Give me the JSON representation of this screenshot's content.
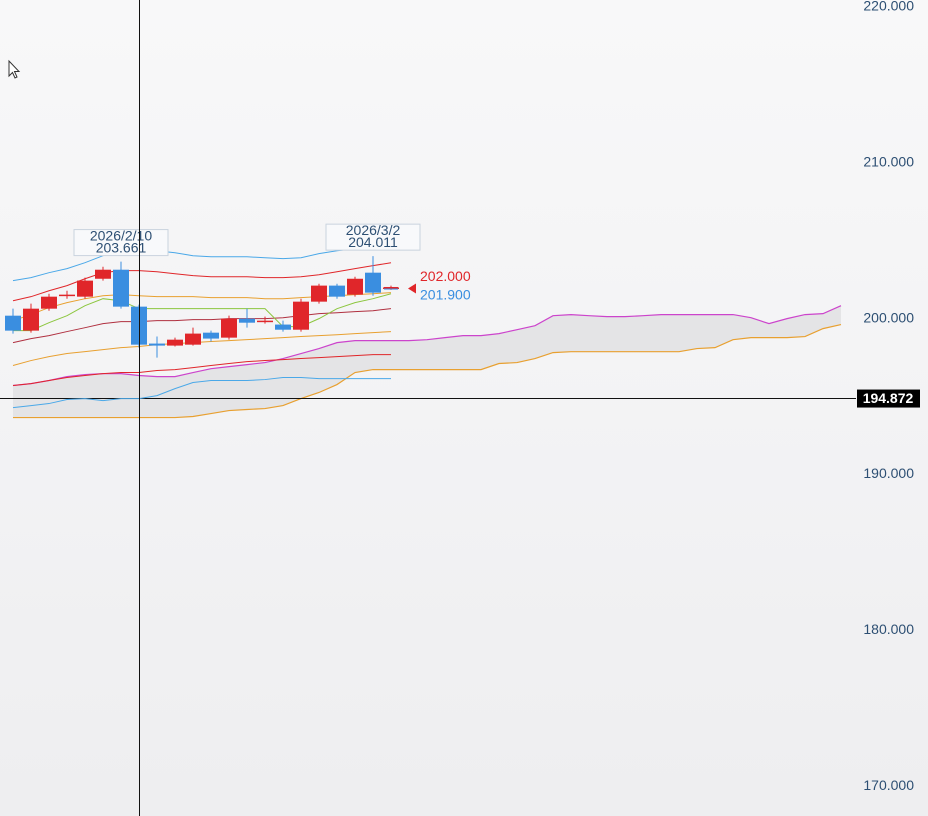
{
  "chart_data": {
    "type": "candlestick",
    "categories": [
      null,
      null,
      null,
      null,
      null,
      null,
      "2026/2/10",
      null,
      null,
      null,
      null,
      null,
      null,
      null,
      null,
      null,
      null,
      null,
      null,
      null,
      "2026/3/2",
      null
    ],
    "open": [
      200.19,
      199.23,
      200.64,
      201.47,
      201.41,
      202.56,
      203.14,
      200.77,
      198.4,
      198.27,
      198.33,
      199.1,
      198.78,
      200.0,
      199.81,
      199.62,
      199.29,
      201.09,
      202.12,
      201.54,
      202.95,
      201.95
    ],
    "high": [
      200.64,
      200.96,
      201.6,
      201.79,
      202.63,
      203.33,
      203.661,
      200.9,
      198.85,
      198.78,
      199.42,
      199.23,
      200.19,
      200.64,
      200.13,
      199.87,
      201.28,
      202.24,
      202.24,
      202.69,
      204.011,
      202.12
    ],
    "low": [
      199.04,
      199.1,
      200.51,
      201.28,
      201.28,
      202.44,
      200.64,
      198.14,
      197.5,
      198.21,
      198.27,
      198.53,
      198.65,
      199.42,
      199.68,
      199.17,
      199.17,
      200.96,
      201.28,
      201.41,
      201.47,
      201.85
    ],
    "close": [
      199.23,
      200.64,
      201.41,
      201.54,
      202.44,
      203.14,
      200.77,
      198.33,
      198.27,
      198.65,
      199.04,
      198.72,
      200.0,
      199.74,
      199.87,
      199.29,
      201.09,
      202.12,
      201.41,
      202.56,
      201.67,
      202.0
    ],
    "up_color": "#e0262a",
    "down_color": "#3a8ee0",
    "ylim": [
      168.08,
      220.45
    ],
    "yticks": [
      {
        "value": 220,
        "label": "220.000"
      },
      {
        "value": 210,
        "label": "210.000"
      },
      {
        "value": 200,
        "label": "200.000"
      },
      {
        "value": 190,
        "label": "190.000"
      },
      {
        "value": 180,
        "label": "180.000"
      },
      {
        "value": 170,
        "label": "170.000"
      }
    ],
    "lines": [
      {
        "color": "#4aa8e8",
        "values": [
          202.44,
          202.63,
          202.95,
          203.21,
          203.59,
          204.04,
          204.36,
          204.49,
          204.36,
          204.23,
          204.04,
          203.97,
          203.97,
          203.97,
          203.91,
          203.85,
          203.91,
          204.17,
          204.36,
          204.49,
          204.62,
          204.74
        ]
      },
      {
        "color": "#e0262a",
        "values": [
          201.15,
          201.41,
          201.79,
          202.12,
          202.56,
          202.95,
          203.08,
          203.08,
          203.01,
          202.88,
          202.76,
          202.69,
          202.69,
          202.69,
          202.63,
          202.63,
          202.69,
          202.82,
          203.01,
          203.21,
          203.4,
          203.59
        ]
      },
      {
        "color": "#e8a030",
        "values": [
          199.87,
          200.26,
          200.71,
          201.03,
          201.28,
          201.47,
          201.54,
          201.47,
          201.41,
          201.41,
          201.41,
          201.35,
          201.35,
          201.35,
          201.28,
          201.28,
          201.35,
          201.41,
          201.47,
          201.54,
          201.6,
          201.67
        ]
      },
      {
        "color": "#b03040",
        "values": [
          198.46,
          198.72,
          198.91,
          199.17,
          199.42,
          199.68,
          199.81,
          199.81,
          199.87,
          199.87,
          199.94,
          199.94,
          200.0,
          200.0,
          200.0,
          200.06,
          200.19,
          200.32,
          200.38,
          200.45,
          200.51,
          200.64
        ]
      },
      {
        "color": "#8cc63f",
        "values": [
          199.23,
          199.23,
          199.74,
          200.19,
          200.83,
          201.28,
          201.15,
          200.64,
          200.64,
          200.64,
          200.64,
          200.64,
          200.64,
          200.64,
          200.64,
          199.49,
          199.49,
          200.0,
          200.64,
          201.03,
          201.28,
          201.6
        ]
      },
      {
        "color": "#e8a030",
        "values": [
          196.99,
          197.31,
          197.56,
          197.76,
          197.88,
          198.01,
          198.14,
          198.21,
          198.33,
          198.4,
          198.46,
          198.53,
          198.59,
          198.65,
          198.72,
          198.78,
          198.85,
          198.91,
          198.97,
          199.04,
          199.1,
          199.17
        ]
      },
      {
        "color": "#e0262a",
        "values": [
          195.71,
          195.83,
          196.03,
          196.22,
          196.35,
          196.47,
          196.54,
          196.54,
          196.67,
          196.73,
          196.86,
          196.99,
          197.12,
          197.24,
          197.31,
          197.37,
          197.44,
          197.5,
          197.56,
          197.63,
          197.69,
          197.69
        ]
      },
      {
        "color": "#4aa8e8",
        "values": [
          194.29,
          194.42,
          194.55,
          194.81,
          194.87,
          194.74,
          194.87,
          194.87,
          195.06,
          195.51,
          195.9,
          196.03,
          196.03,
          196.03,
          196.09,
          196.22,
          196.22,
          196.15,
          196.15,
          196.15,
          196.15,
          196.15
        ]
      }
    ],
    "cloud": {
      "fill": "#e4e4e6",
      "span_a": {
        "color": "#cc44cc",
        "values": [
          195.71,
          195.83,
          196.03,
          196.28,
          196.41,
          196.47,
          196.47,
          196.35,
          196.28,
          196.28,
          196.54,
          196.79,
          196.92,
          197.05,
          197.18,
          197.44,
          197.76,
          198.08,
          198.46,
          198.59,
          198.59,
          198.59,
          198.59,
          198.65,
          198.78,
          198.91,
          198.91,
          199.04,
          199.29,
          199.55,
          200.19,
          200.26,
          200.19,
          200.13,
          200.13,
          200.19,
          200.26,
          200.26,
          200.26,
          200.26,
          200.26,
          200.06,
          199.68,
          200.0,
          200.26,
          200.32,
          200.83
        ]
      },
      "span_b": {
        "color": "#e8a030",
        "values": [
          193.65,
          193.65,
          193.65,
          193.65,
          193.65,
          193.65,
          193.65,
          193.65,
          193.65,
          193.65,
          193.72,
          193.91,
          194.1,
          194.17,
          194.23,
          194.42,
          194.87,
          195.26,
          195.77,
          196.54,
          196.73,
          196.73,
          196.73,
          196.73,
          196.73,
          196.73,
          196.73,
          197.12,
          197.18,
          197.44,
          197.82,
          197.88,
          197.88,
          197.88,
          197.88,
          197.88,
          197.88,
          197.88,
          198.08,
          198.14,
          198.65,
          198.78,
          198.78,
          198.78,
          198.85,
          199.36,
          199.62
        ]
      }
    },
    "price_markers": [
      {
        "value": 202.0,
        "label": "202.000",
        "color": "#e0262a"
      },
      {
        "value": 201.9,
        "label": "201.900",
        "color": "#3a8ee0"
      }
    ],
    "crosshair": {
      "y": 194.872
    }
  }
}
